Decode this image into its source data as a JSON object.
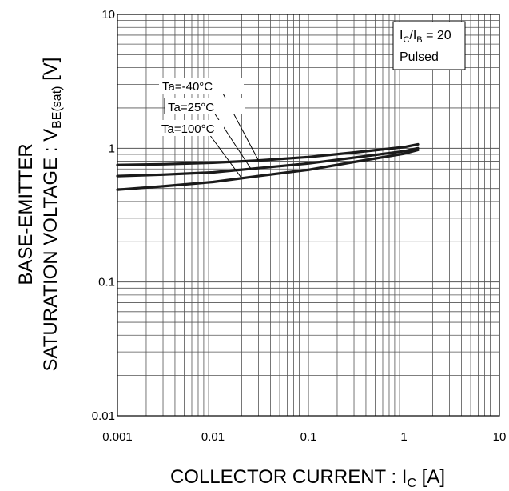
{
  "chart_data": {
    "type": "line",
    "x_scale": "log",
    "y_scale": "log",
    "xlim": [
      0.001,
      10
    ],
    "ylim": [
      0.01,
      10
    ],
    "grid": true,
    "x_ticks": [
      {
        "value": 0.001,
        "label": "0.001"
      },
      {
        "value": 0.01,
        "label": "0.01"
      },
      {
        "value": 0.1,
        "label": "0.1"
      },
      {
        "value": 1,
        "label": "1"
      },
      {
        "value": 10,
        "label": "10"
      }
    ],
    "y_ticks": [
      {
        "value": 0.01,
        "label": "0.01"
      },
      {
        "value": 0.1,
        "label": "0.1"
      },
      {
        "value": 1,
        "label": "1"
      },
      {
        "value": 10,
        "label": "10"
      }
    ],
    "xlabel": {
      "main": "COLLECTOR CURRENT : I",
      "sub": "C",
      "unit": " [A]"
    },
    "ylabel": {
      "line1": "BASE-EMITTER",
      "line2_main": "SATURATION VOLTAGE : V",
      "line2_sub": "BE(sat)",
      "line2_unit": " [V]"
    },
    "conditions": {
      "ratio_main1": "I",
      "ratio_sub1": "C",
      "ratio_mid": "/I",
      "ratio_sub2": "B",
      "ratio_tail": " = 20",
      "mode": "Pulsed"
    },
    "series": [
      {
        "name": "Ta=-40°C",
        "x": [
          0.001,
          0.003,
          0.01,
          0.03,
          0.1,
          0.3,
          1,
          1.4
        ],
        "y": [
          0.75,
          0.76,
          0.78,
          0.81,
          0.86,
          0.93,
          1.02,
          1.07
        ]
      },
      {
        "name": "Ta=25°C",
        "x": [
          0.001,
          0.003,
          0.01,
          0.03,
          0.1,
          0.3,
          1,
          1.4
        ],
        "y": [
          0.62,
          0.635,
          0.66,
          0.71,
          0.77,
          0.85,
          0.95,
          1.0
        ]
      },
      {
        "name": "Ta=100°C",
        "x": [
          0.001,
          0.003,
          0.01,
          0.03,
          0.1,
          0.3,
          1,
          1.4
        ],
        "y": [
          0.49,
          0.52,
          0.56,
          0.62,
          0.69,
          0.79,
          0.91,
          0.97
        ]
      }
    ],
    "line_color": "#1a1a1a",
    "grid_color": "#555555"
  }
}
